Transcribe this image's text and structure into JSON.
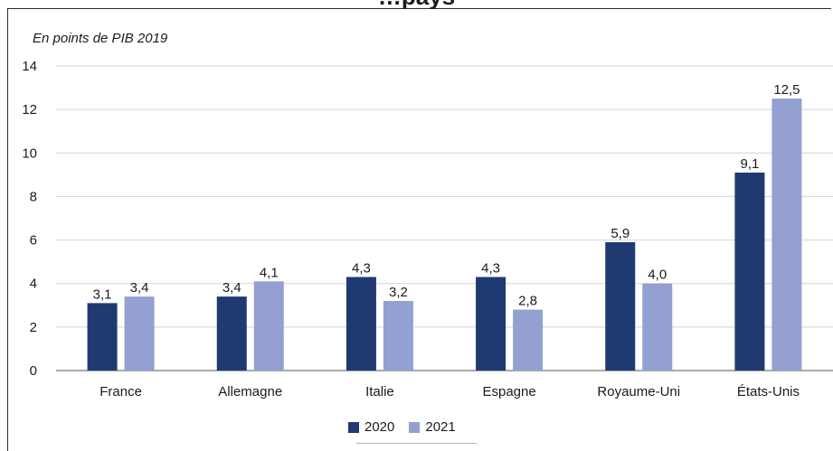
{
  "title_fragment": "…pays",
  "unit_label": "En points de PIB 2019",
  "colors": {
    "2020": "#1f3a70",
    "2021": "#94a0d1",
    "gridline": "#d4d4d4",
    "axis": "#555555"
  },
  "chart_data": {
    "type": "bar",
    "categories": [
      "France",
      "Allemagne",
      "Italie",
      "Espagne",
      "Royaume-Uni",
      "États-Unis"
    ],
    "series": [
      {
        "name": "2020",
        "values": [
          3.1,
          3.4,
          4.3,
          4.3,
          5.9,
          9.1
        ],
        "labels": [
          "3,1",
          "3,4",
          "4,3",
          "4,3",
          "5,9",
          "9,1"
        ]
      },
      {
        "name": "2021",
        "values": [
          3.4,
          4.1,
          3.2,
          2.8,
          4.0,
          12.5
        ],
        "labels": [
          "3,4",
          "4,1",
          "3,2",
          "2,8",
          "4,0",
          "12,5"
        ]
      }
    ],
    "ylim": [
      0,
      14
    ],
    "yticks": [
      0,
      2,
      4,
      6,
      8,
      10,
      12,
      14
    ],
    "grid": true,
    "legend": "bottom"
  }
}
